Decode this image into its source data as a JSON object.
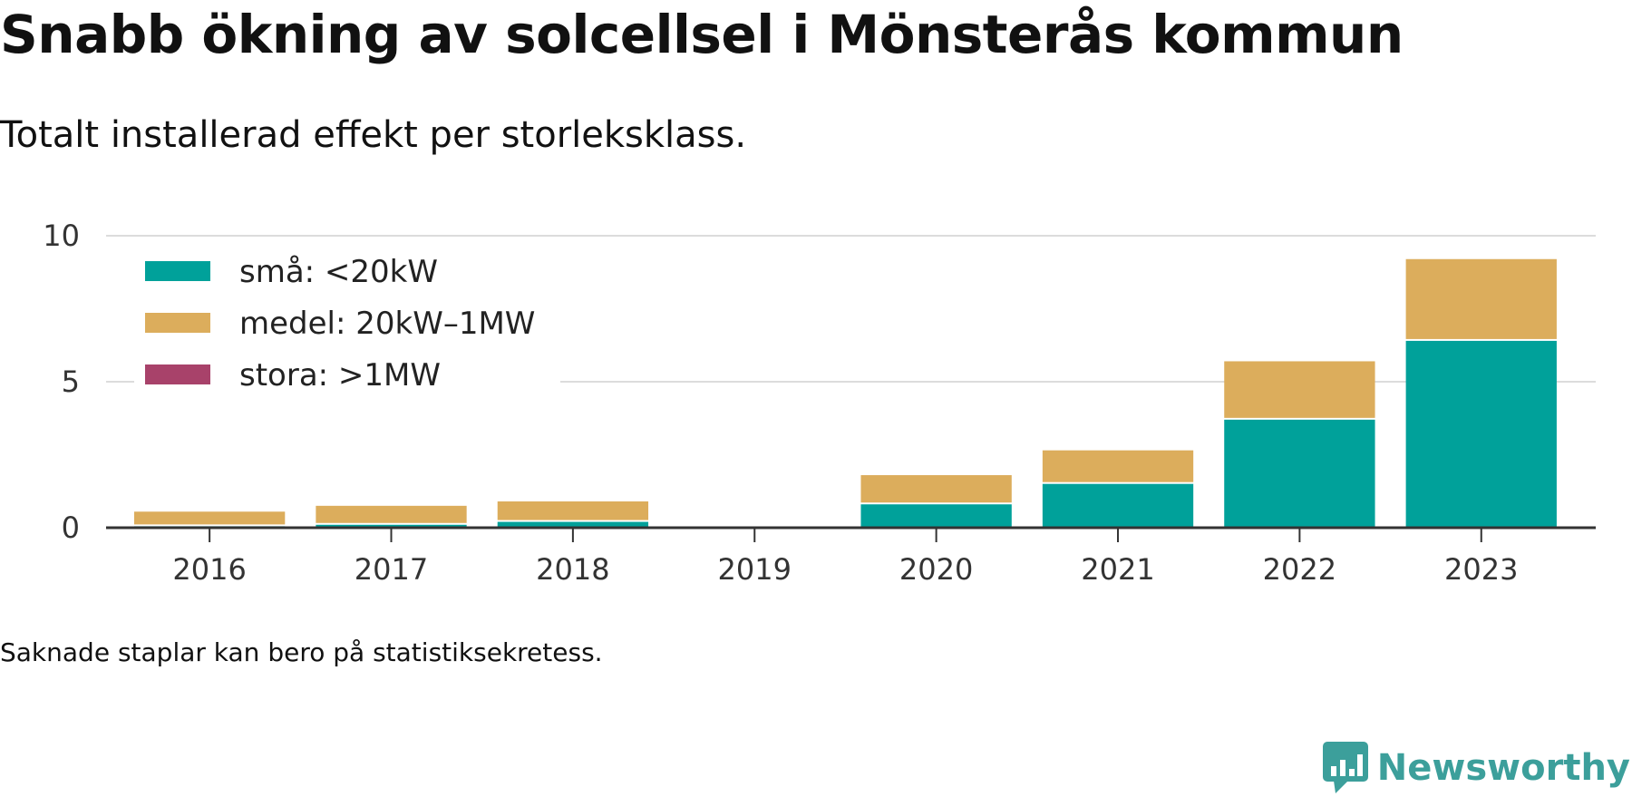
{
  "header": {
    "title": "Snabb ökning av solcellsel i Mönsterås kommun",
    "subtitle": "Totalt installerad effekt per storleksklass."
  },
  "footnote": "Saknade staplar kan bero på statistiksekretess.",
  "brand": {
    "name": "Newsworthy",
    "icon": "newsworthy-logo-icon",
    "color": "#3c9f9b"
  },
  "chart_data": {
    "type": "bar",
    "stacked": true,
    "categories": [
      "2016",
      "2017",
      "2018",
      "2019",
      "2020",
      "2021",
      "2022",
      "2023"
    ],
    "series": [
      {
        "name": "små: <20kW",
        "color": "#00a19a",
        "values": [
          0.05,
          0.1,
          0.2,
          null,
          0.8,
          1.5,
          3.7,
          6.4
        ]
      },
      {
        "name": "medel: 20kW–1MW",
        "color": "#dcad5c",
        "values": [
          0.5,
          0.65,
          0.7,
          null,
          1.0,
          1.15,
          2.0,
          2.8
        ]
      },
      {
        "name": "stora: >1MW",
        "color": "#a8426a",
        "values": [
          0,
          0,
          0,
          null,
          0,
          0,
          0,
          0
        ]
      }
    ],
    "y_ticks": [
      0,
      5,
      10
    ],
    "ylim": [
      0,
      10
    ],
    "grid": true,
    "legend_position": "top-left"
  }
}
